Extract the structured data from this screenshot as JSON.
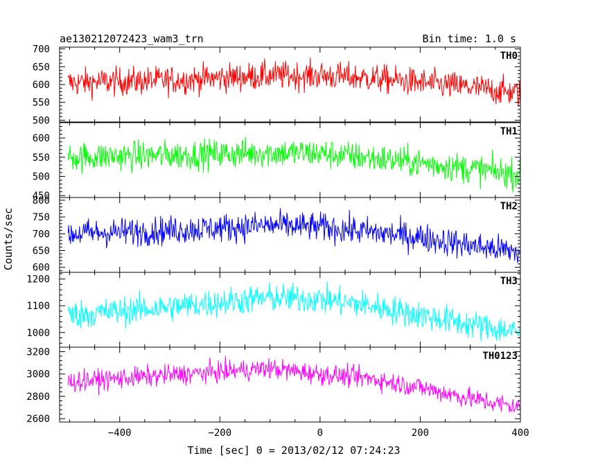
{
  "chart_data": {
    "type": "line",
    "title": "ae130212072423_wam3_trn",
    "subtitle": "Bin time: 1.0 s",
    "xlabel": "Time [sec] 0 = 2013/02/12 07:24:23",
    "ylabel": "Counts/sec",
    "xlim": [
      -520,
      400
    ],
    "x_ticks": [
      -400,
      -200,
      0,
      200,
      400
    ],
    "x_tick_labels": [
      "−400",
      "−200",
      "0",
      "200",
      "400"
    ],
    "x_minor_step": 50,
    "panels": [
      {
        "name": "TH0",
        "color": "#ff0000",
        "ylim": [
          495,
          705
        ],
        "y_ticks": [
          500,
          550,
          600,
          650,
          700
        ],
        "y_tick_labels": [
          "500",
          "550",
          "600",
          "650",
          "700"
        ],
        "y_minor_step": 10,
        "x_range": [
          -503,
          400
        ],
        "baseline_x": [
          -500,
          -300,
          -100,
          0,
          100,
          200,
          300,
          400
        ],
        "baseline_y": [
          605,
          612,
          625,
          625,
          618,
          605,
          592,
          575
        ],
        "noise_amp": 28
      },
      {
        "name": "TH1",
        "color": "#00ff00",
        "ylim": [
          445,
          640
        ],
        "y_ticks": [
          450,
          500,
          550,
          600
        ],
        "y_tick_labels": [
          "450",
          "500",
          "550",
          "600"
        ],
        "y_minor_step": 10,
        "x_range": [
          -503,
          400
        ],
        "baseline_x": [
          -500,
          -300,
          -100,
          0,
          100,
          200,
          300,
          400
        ],
        "baseline_y": [
          550,
          555,
          562,
          560,
          548,
          535,
          520,
          505
        ],
        "noise_amp": 27
      },
      {
        "name": "TH2",
        "color": "#0000ff",
        "ylim": [
          585,
          808
        ],
        "y_ticks": [
          600,
          650,
          700,
          750,
          800
        ],
        "y_tick_labels": [
          "600",
          "650",
          "700",
          "750",
          "800"
        ],
        "y_minor_step": 10,
        "x_range": [
          -503,
          400
        ],
        "baseline_x": [
          -500,
          -300,
          -100,
          0,
          100,
          200,
          300,
          400
        ],
        "baseline_y": [
          700,
          710,
          725,
          720,
          705,
          690,
          665,
          645
        ],
        "noise_amp": 30
      },
      {
        "name": "TH3",
        "color": "#00ffff",
        "ylim": [
          945,
          1225
        ],
        "y_ticks": [
          1000,
          1100,
          1200
        ],
        "y_tick_labels": [
          "1000",
          "1100",
          "1200"
        ],
        "y_minor_step": 20,
        "x_range": [
          -503,
          400
        ],
        "baseline_x": [
          -500,
          -300,
          -100,
          0,
          100,
          200,
          300,
          400
        ],
        "baseline_y": [
          1065,
          1095,
          1130,
          1125,
          1100,
          1065,
          1030,
          1000
        ],
        "noise_amp": 38
      },
      {
        "name": "TH0123",
        "color": "#ff00ff",
        "ylim": [
          2570,
          3240
        ],
        "y_ticks": [
          2600,
          2800,
          3000,
          3200
        ],
        "y_tick_labels": [
          "2600",
          "2800",
          "3000",
          "3200"
        ],
        "y_minor_step": 40,
        "x_range": [
          -503,
          400
        ],
        "baseline_x": [
          -500,
          -300,
          -100,
          0,
          100,
          200,
          300,
          400
        ],
        "baseline_y": [
          2930,
          2990,
          3050,
          3000,
          2960,
          2880,
          2780,
          2700
        ],
        "noise_amp": 65
      }
    ]
  }
}
